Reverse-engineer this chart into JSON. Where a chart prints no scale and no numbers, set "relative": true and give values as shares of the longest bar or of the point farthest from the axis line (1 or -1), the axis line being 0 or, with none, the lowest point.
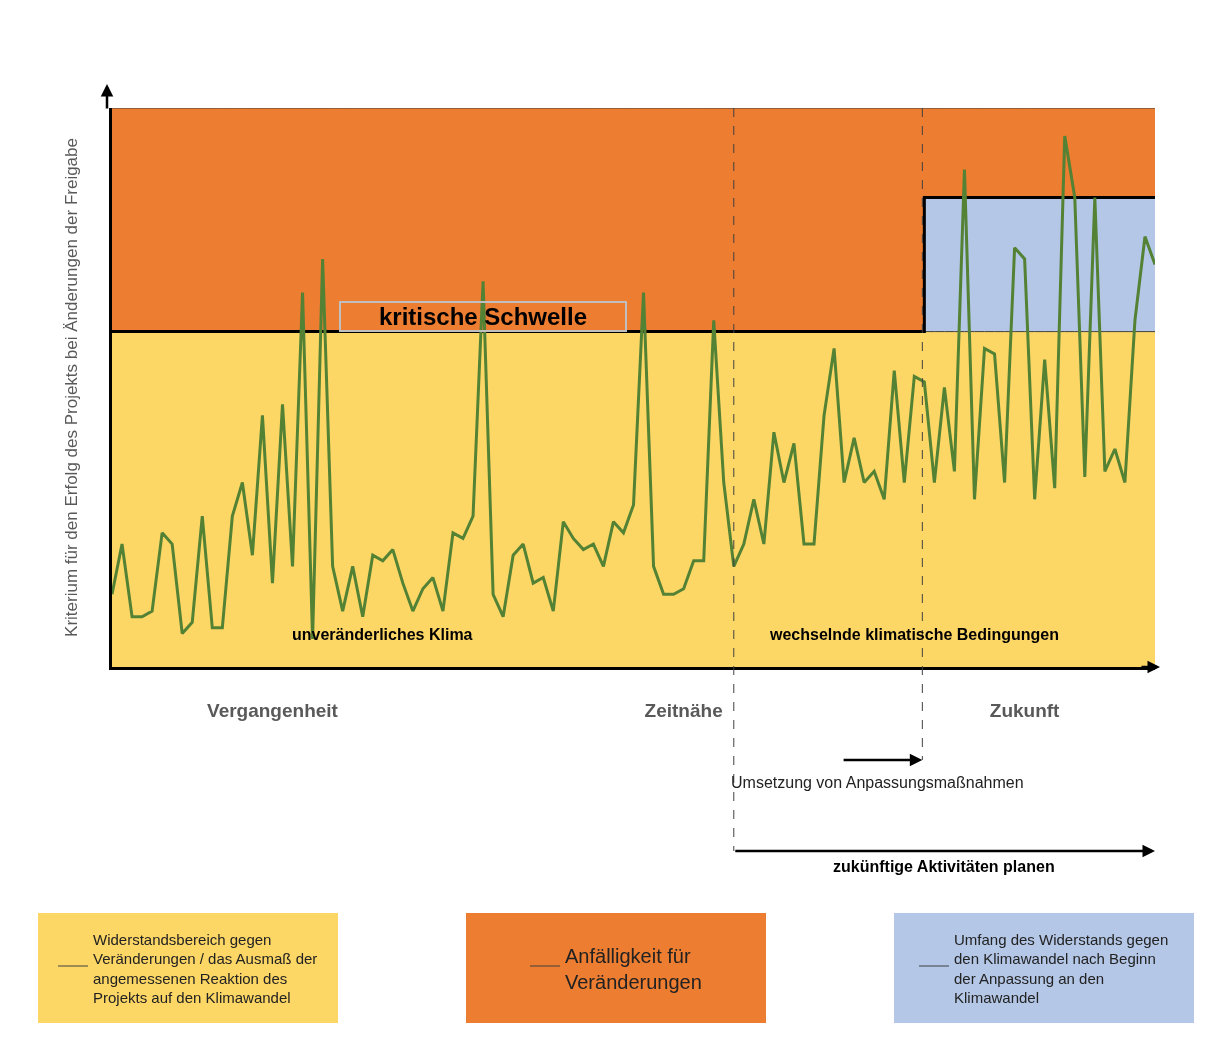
{
  "chart_data": {
    "type": "line",
    "relative": true,
    "ylabel": "Kriterium für den Erfolg des Projekts bei Änderungen der Freigabe",
    "categories": [
      null,
      null,
      null,
      null,
      null,
      null,
      null,
      null,
      null,
      null,
      null,
      null,
      null,
      null,
      null,
      null,
      "Vergangenheit",
      null,
      null,
      null,
      null,
      null,
      null,
      null,
      null,
      null,
      null,
      null,
      null,
      null,
      null,
      null,
      null,
      null,
      null,
      null,
      null,
      null,
      null,
      null,
      null,
      null,
      null,
      null,
      null,
      null,
      null,
      null,
      null,
      null,
      null,
      null,
      null,
      null,
      null,
      null,
      null,
      "Zeitnähe",
      null,
      null,
      null,
      null,
      null,
      null,
      null,
      null,
      null,
      null,
      null,
      null,
      null,
      null,
      null,
      null,
      null,
      null,
      null,
      null,
      null,
      null,
      null,
      null,
      null,
      null,
      null,
      null,
      null,
      null,
      null,
      null,
      null,
      "Zukunft",
      null,
      null,
      null,
      null,
      null,
      null,
      null,
      null,
      null,
      null,
      null,
      null,
      null
    ],
    "series": [
      {
        "type": "area",
        "name": "Widerstandsbereich gegen Veränderungen / das Ausmaß der angemessenen Reaktion des Projekts auf den Klimawandel",
        "color": "#fdd766",
        "values": [
          0.6,
          0.6,
          0.6,
          0.6,
          0.6,
          0.6,
          0.6,
          0.6,
          0.6,
          0.6,
          0.6,
          0.6,
          0.6,
          0.6,
          0.6,
          0.6,
          0.6,
          0.6,
          0.6,
          0.6,
          0.6,
          0.6,
          0.6,
          0.6,
          0.6,
          0.6,
          0.6,
          0.6,
          0.6,
          0.6,
          0.6,
          0.6,
          0.6,
          0.6,
          0.6,
          0.6,
          0.6,
          0.6,
          0.6,
          0.6,
          0.6,
          0.6,
          0.6,
          0.6,
          0.6,
          0.6,
          0.6,
          0.6,
          0.6,
          0.6,
          0.6,
          0.6,
          0.6,
          0.6,
          0.6,
          0.6,
          0.6,
          0.6,
          0.6,
          0.6,
          0.6,
          0.6,
          0.6,
          0.6,
          0.6,
          0.6,
          0.6,
          0.6,
          0.6,
          0.6,
          0.6,
          0.6,
          0.6,
          0.6,
          0.6,
          0.6,
          0.6,
          0.6,
          0.6,
          0.6,
          0.6,
          0.6,
          0.6,
          0.6,
          0.6,
          0.6,
          0.6,
          0.6,
          0.6,
          0.6,
          0.6,
          0.6,
          0.6,
          0.6,
          0.6,
          0.6,
          0.6,
          0.6,
          0.6,
          0.6,
          0.6,
          0.6,
          0.6,
          0.6,
          0.6
        ]
      },
      {
        "type": "area",
        "name": "Anfälligkeit für Veränderungen",
        "color": "#ed7d31",
        "values": [
          1,
          1,
          1,
          1,
          1,
          1,
          1,
          1,
          1,
          1,
          1,
          1,
          1,
          1,
          1,
          1,
          1,
          1,
          1,
          1,
          1,
          1,
          1,
          1,
          1,
          1,
          1,
          1,
          1,
          1,
          1,
          1,
          1,
          1,
          1,
          1,
          1,
          1,
          1,
          1,
          1,
          1,
          1,
          1,
          1,
          1,
          1,
          1,
          1,
          1,
          1,
          1,
          1,
          1,
          1,
          1,
          1,
          1,
          1,
          1,
          1,
          1,
          1,
          1,
          1,
          1,
          1,
          1,
          1,
          1,
          1,
          1,
          1,
          1,
          1,
          1,
          1,
          1,
          1,
          1,
          1,
          1,
          1,
          1,
          1,
          1,
          1,
          1,
          1,
          1,
          1,
          1,
          1,
          1,
          1,
          1,
          1,
          1,
          1,
          1,
          1,
          1,
          1,
          1,
          1
        ]
      },
      {
        "type": "area",
        "name": "Umfang des Widerstands gegen den Klimawandel nach Beginn der Anpassung an den Klimawandel",
        "color": "#b4c7e7",
        "values": [
          null,
          null,
          null,
          null,
          null,
          null,
          null,
          null,
          null,
          null,
          null,
          null,
          null,
          null,
          null,
          null,
          null,
          null,
          null,
          null,
          null,
          null,
          null,
          null,
          null,
          null,
          null,
          null,
          null,
          null,
          null,
          null,
          null,
          null,
          null,
          null,
          null,
          null,
          null,
          null,
          null,
          null,
          null,
          null,
          null,
          null,
          null,
          null,
          null,
          null,
          null,
          null,
          null,
          null,
          null,
          null,
          null,
          null,
          null,
          null,
          null,
          null,
          null,
          null,
          null,
          null,
          null,
          null,
          null,
          null,
          null,
          null,
          null,
          null,
          null,
          null,
          null,
          null,
          null,
          null,
          null,
          0.84,
          0.84,
          0.84,
          0.84,
          0.84,
          0.84,
          0.84,
          0.84,
          0.84,
          0.84,
          0.84,
          0.84,
          0.84,
          0.84,
          0.84,
          0.84,
          0.84,
          0.84,
          0.84,
          0.84,
          0.84,
          0.84,
          0.84,
          0.84
        ]
      },
      {
        "type": "step",
        "color": "#000000",
        "values": [
          0.6,
          0.6,
          0.6,
          0.6,
          0.6,
          0.6,
          0.6,
          0.6,
          0.6,
          0.6,
          0.6,
          0.6,
          0.6,
          0.6,
          0.6,
          0.6,
          0.6,
          0.6,
          0.6,
          0.6,
          0.6,
          0.6,
          0.6,
          0.6,
          0.6,
          0.6,
          0.6,
          0.6,
          0.6,
          0.6,
          0.6,
          0.6,
          0.6,
          0.6,
          0.6,
          0.6,
          0.6,
          0.6,
          0.6,
          0.6,
          0.6,
          0.6,
          0.6,
          0.6,
          0.6,
          0.6,
          0.6,
          0.6,
          0.6,
          0.6,
          0.6,
          0.6,
          0.6,
          0.6,
          0.6,
          0.6,
          0.6,
          0.6,
          0.6,
          0.6,
          0.6,
          0.6,
          0.6,
          0.6,
          0.6,
          0.6,
          0.6,
          0.6,
          0.6,
          0.6,
          0.6,
          0.6,
          0.6,
          0.6,
          0.6,
          0.6,
          0.6,
          0.6,
          0.6,
          0.6,
          0.6,
          0.84,
          0.84,
          0.84,
          0.84,
          0.84,
          0.84,
          0.84,
          0.84,
          0.84,
          0.84,
          0.84,
          0.84,
          0.84,
          0.84,
          0.84,
          0.84,
          0.84,
          0.84,
          0.84,
          0.84,
          0.84,
          0.84,
          0.84,
          0.84
        ]
      },
      {
        "color": "#548235",
        "values": [
          0.13,
          0.22,
          0.09,
          0.09,
          0.1,
          0.24,
          0.22,
          0.06,
          0.08,
          0.27,
          0.07,
          0.07,
          0.27,
          0.33,
          0.2,
          0.45,
          0.15,
          0.47,
          0.18,
          0.67,
          0.05,
          0.73,
          0.18,
          0.1,
          0.18,
          0.09,
          0.2,
          0.19,
          0.21,
          0.15,
          0.1,
          0.14,
          0.16,
          0.1,
          0.24,
          0.23,
          0.27,
          0.69,
          0.13,
          0.09,
          0.2,
          0.22,
          0.15,
          0.16,
          0.1,
          0.26,
          0.23,
          0.21,
          0.22,
          0.18,
          0.26,
          0.24,
          0.29,
          0.67,
          0.18,
          0.13,
          0.13,
          0.14,
          0.19,
          0.19,
          0.62,
          0.33,
          0.18,
          0.22,
          0.3,
          0.22,
          0.42,
          0.33,
          0.4,
          0.22,
          0.22,
          0.45,
          0.57,
          0.33,
          0.41,
          0.33,
          0.35,
          0.3,
          0.53,
          0.33,
          0.52,
          0.51,
          0.33,
          0.5,
          0.35,
          0.89,
          0.3,
          0.57,
          0.56,
          0.33,
          0.75,
          0.73,
          0.3,
          0.55,
          0.32,
          0.95,
          0.84,
          0.34,
          0.84,
          0.35,
          0.39,
          0.33,
          0.62,
          0.77,
          0.72
        ]
      }
    ],
    "annotations": [
      {
        "text": "kritische Schwelle",
        "y": 0.6
      },
      "unveränderliches Klima",
      "wechselnde klimatische Bedingungen",
      "zukünftige Aktivitäten planen",
      "Umsetzung von Anpassungsmaßnahmen"
    ],
    "legend": "bottom"
  }
}
